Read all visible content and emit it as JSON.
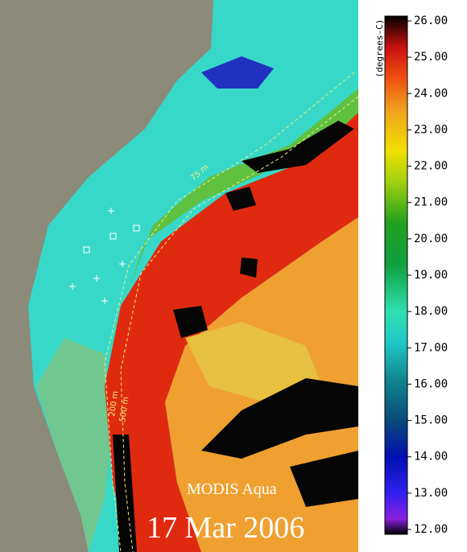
{
  "title": "MODIS Aqua",
  "date": "17 Mar 2006",
  "isobaths": [
    "75 m",
    "200 m",
    "500 m"
  ],
  "colorbar": {
    "unit": "(degrees-C)",
    "lim": [
      12,
      26
    ],
    "ticks": [
      {
        "value": 26,
        "label": "26.00"
      },
      {
        "value": 25,
        "label": "25.00"
      },
      {
        "value": 24,
        "label": "24.00"
      },
      {
        "value": 23,
        "label": "23.00"
      },
      {
        "value": 22,
        "label": "22.00"
      },
      {
        "value": 21,
        "label": "21.00"
      },
      {
        "value": 20,
        "label": "20.00"
      },
      {
        "value": 19,
        "label": "19.00"
      },
      {
        "value": 18,
        "label": "18.00"
      },
      {
        "value": 17,
        "label": "17.00"
      },
      {
        "value": 16,
        "label": "16.00"
      },
      {
        "value": 15,
        "label": "15.00"
      },
      {
        "value": 14,
        "label": "14.00"
      },
      {
        "value": 13,
        "label": "13.00"
      },
      {
        "value": 12,
        "label": "12.00"
      }
    ]
  }
}
